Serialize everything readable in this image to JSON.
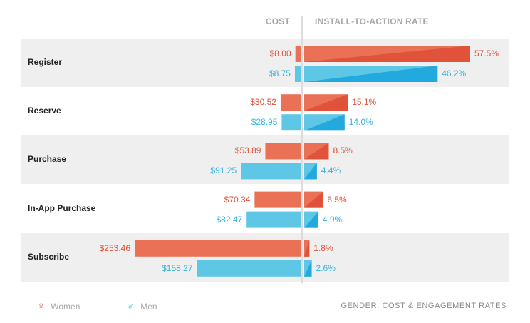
{
  "chart_data": {
    "type": "bar",
    "title": "GENDER: COST & ENGAGEMENT RATES",
    "left_header": "COST",
    "right_header": "INSTALL-TO-ACTION RATE",
    "categories": [
      "Register",
      "Reserve",
      "Purchase",
      "In-App Purchase",
      "Subscribe"
    ],
    "series": [
      {
        "name": "Women",
        "color": "#e0533a",
        "cost": [
          8.0,
          30.52,
          53.89,
          70.34,
          253.46
        ],
        "cost_labels": [
          "$8.00",
          "$30.52",
          "$53.89",
          "$70.34",
          "$253.46"
        ],
        "rate": [
          57.5,
          15.1,
          8.5,
          6.5,
          1.8
        ],
        "rate_labels": [
          "57.5%",
          "15.1%",
          "8.5%",
          "6.5%",
          "1.8%"
        ]
      },
      {
        "name": "Men",
        "color": "#37b3df",
        "cost": [
          8.75,
          28.95,
          91.25,
          82.47,
          158.27
        ],
        "cost_labels": [
          "$8.75",
          "$28.95",
          "$91.25",
          "$82.47",
          "$158.27"
        ],
        "rate": [
          46.2,
          14.0,
          4.4,
          4.9,
          2.6
        ],
        "rate_labels": [
          "46.2%",
          "14.0%",
          "4.4%",
          "4.9%",
          "2.6%"
        ]
      }
    ],
    "legend": {
      "placement": "bottom-left",
      "women_label": "Women",
      "men_label": "Men",
      "women_icon": "female-symbol-icon",
      "men_icon": "male-symbol-icon"
    },
    "colors": {
      "row_band": "#efefef",
      "divider": "#dcdcdc",
      "women_dark": "#e0533a",
      "women_light": "#ea7156",
      "men_dark": "#22a9de",
      "men_light": "#5fc7e6"
    }
  }
}
